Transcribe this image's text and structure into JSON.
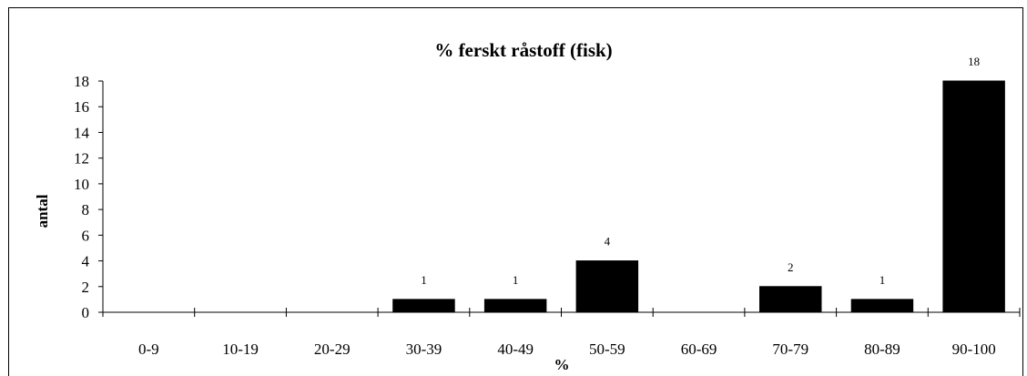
{
  "chart_data": {
    "type": "bar",
    "title": "% ferskt råstoff (fisk)",
    "xlabel": "%",
    "ylabel": "antal",
    "categories": [
      "0-9",
      "10-19",
      "20-29",
      "30-39",
      "40-49",
      "50-59",
      "60-69",
      "70-79",
      "80-89",
      "90-100"
    ],
    "values": [
      0,
      0,
      0,
      1,
      1,
      4,
      0,
      2,
      1,
      18
    ],
    "data_labels": [
      "",
      "",
      "",
      "1",
      "1",
      "4",
      "",
      "2",
      "1",
      "18"
    ],
    "ylim": [
      0,
      18
    ],
    "yticks": [
      "0",
      "2",
      "4",
      "6",
      "8",
      "10",
      "12",
      "14",
      "16",
      "18"
    ],
    "grid": false,
    "legend": "none",
    "bar_color": "#000000"
  }
}
